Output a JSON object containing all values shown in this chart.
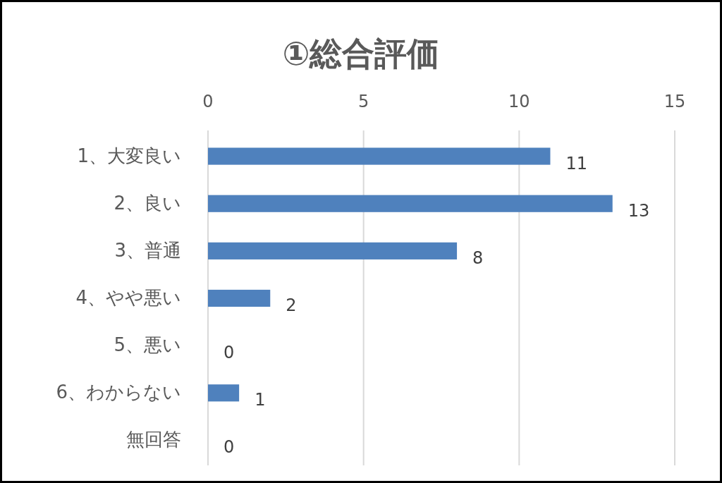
{
  "chart_data": {
    "type": "bar",
    "orientation": "horizontal",
    "title": "①総合評価",
    "categories": [
      "1、大変良い",
      "2、良い",
      "3、普通",
      "4、やや悪い",
      "5、悪い",
      "6、わからない",
      "無回答"
    ],
    "values": [
      11,
      13,
      8,
      2,
      0,
      1,
      0
    ],
    "color": "#4f81bd",
    "xlim": [
      0,
      15
    ],
    "xticks": [
      0,
      5,
      10,
      15
    ],
    "grid": "x",
    "data_labels": true
  }
}
